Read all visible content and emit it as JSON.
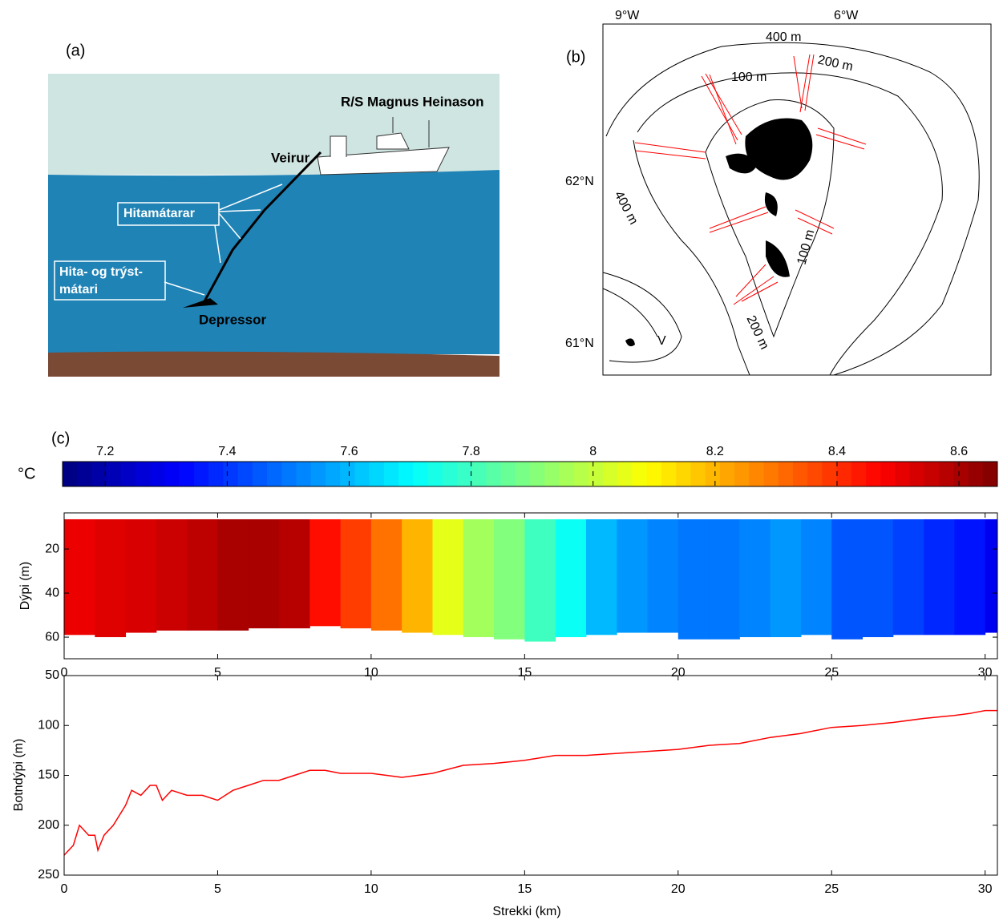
{
  "diagram": {
    "label": "(a)",
    "vessel": "R/S Magnus Heinason",
    "cable": "Veirur",
    "sensors": "Hitamátarar",
    "pressure_sensor": [
      "Hita- og trýst-",
      "mátari"
    ],
    "depressor": "Depressor"
  },
  "map": {
    "label": "(b)",
    "lon_labels": [
      "9°W",
      "6°W"
    ],
    "lat_labels": [
      "62°N",
      "61°N"
    ],
    "contour_labels": [
      "400 m",
      "200 m",
      "100 m",
      "400 m",
      "100 m",
      "200 m"
    ],
    "place": "V"
  },
  "chart_data": [
    {
      "type": "heatmap",
      "panel_label": "(c)",
      "colorbar_label": "°C",
      "colormap": "jet",
      "clim": [
        7.13,
        8.663
      ],
      "cticks": [
        7.2,
        7.4,
        7.6,
        7.8,
        8,
        8.2,
        8.4,
        8.6
      ],
      "x": [
        0,
        1,
        2,
        3,
        4,
        5,
        6,
        7,
        8,
        9,
        10,
        11,
        12,
        13,
        14,
        15,
        16,
        17,
        18,
        19,
        20,
        21,
        22,
        23,
        24,
        25,
        26,
        27,
        28,
        29,
        30
      ],
      "values": [
        8.5,
        8.52,
        8.53,
        8.55,
        8.57,
        8.6,
        8.6,
        8.58,
        8.45,
        8.38,
        8.3,
        8.2,
        8.05,
        7.95,
        7.9,
        7.8,
        7.72,
        7.6,
        7.55,
        7.52,
        7.5,
        7.5,
        7.52,
        7.55,
        7.52,
        7.45,
        7.45,
        7.42,
        7.38,
        7.35,
        7.3
      ],
      "surface_depth": 6.5,
      "bottom_depth": [
        59,
        60,
        58,
        57,
        57,
        57,
        56,
        56,
        55,
        56,
        57,
        58,
        59,
        60,
        61,
        62,
        60,
        59,
        58,
        58,
        61,
        61,
        60,
        60,
        59,
        61,
        60,
        59,
        59,
        59,
        58
      ],
      "xlim": [
        0,
        30.4
      ],
      "ylim": [
        3.6,
        69.8
      ],
      "y_reversed": true,
      "xticks": [
        0,
        5,
        10,
        15,
        20,
        25,
        30
      ],
      "yticks": [
        20,
        40,
        60
      ],
      "ylabel": "Dýpi (m)"
    },
    {
      "type": "line",
      "color": "#ff0000",
      "x": [
        0,
        0.3,
        0.5,
        0.8,
        1.0,
        1.1,
        1.3,
        1.6,
        2.0,
        2.2,
        2.5,
        2.8,
        3.0,
        3.2,
        3.5,
        4.0,
        4.5,
        5.0,
        5.5,
        6.0,
        6.5,
        7.0,
        7.5,
        8.0,
        8.5,
        9.0,
        10,
        11,
        12,
        13,
        14,
        15,
        16,
        17,
        18,
        19,
        20,
        21,
        22,
        23,
        24,
        25,
        26,
        27,
        28,
        29,
        29.5,
        30,
        30.4
      ],
      "values": [
        230,
        220,
        200,
        210,
        210,
        225,
        210,
        200,
        180,
        165,
        170,
        160,
        160,
        175,
        165,
        170,
        170,
        175,
        165,
        160,
        155,
        155,
        150,
        145,
        145,
        148,
        148,
        152,
        148,
        140,
        138,
        135,
        130,
        130,
        128,
        126,
        124,
        120,
        118,
        112,
        108,
        102,
        100,
        97,
        93,
        90,
        88,
        85,
        85
      ],
      "xlim": [
        0,
        30.4
      ],
      "ylim": [
        50,
        250
      ],
      "y_reversed": true,
      "xticks": [
        0,
        5,
        10,
        15,
        20,
        25,
        30
      ],
      "yticks": [
        50,
        100,
        150,
        200,
        250
      ],
      "xlabel": "Strekki (km)",
      "ylabel": "Botndýpi (m)"
    }
  ]
}
